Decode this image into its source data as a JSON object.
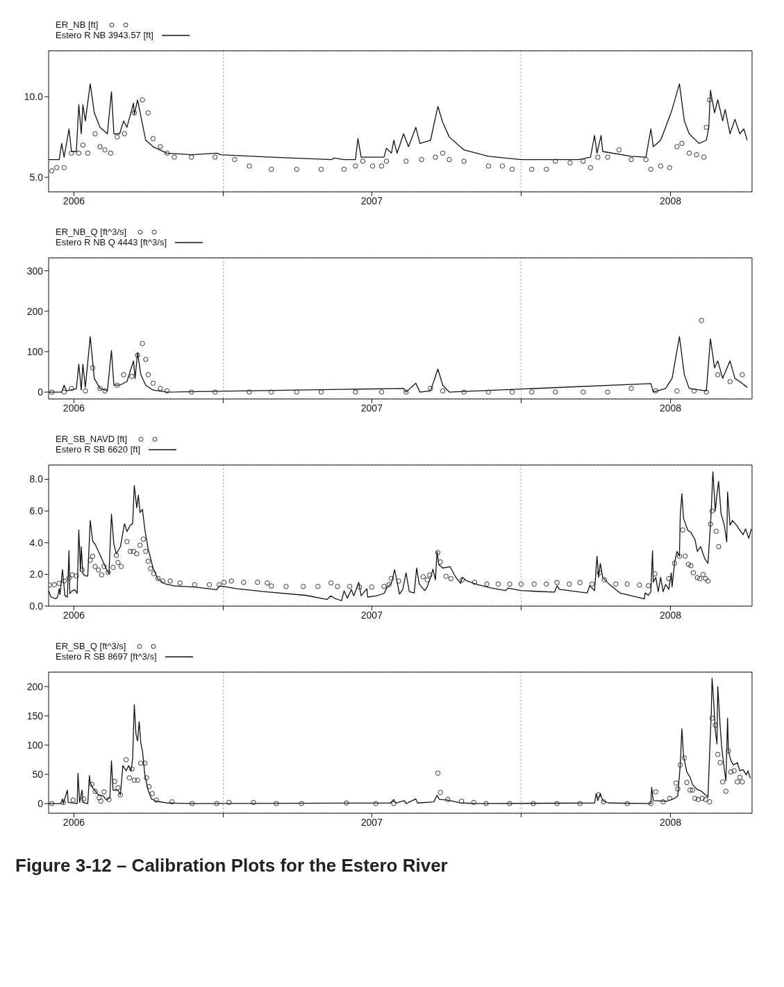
{
  "chart_data": [
    {
      "type": "line",
      "legend": "top left",
      "grid": true,
      "xlim": [
        "2006-06-01",
        "2008-10-10"
      ],
      "xticks": [
        {
          "value": "2006-07-02",
          "label": "2006"
        },
        {
          "value": "2007-01-01",
          "label": null
        },
        {
          "value": "2007-07-02",
          "label": "2007"
        },
        {
          "value": "2008-01-01",
          "label": null
        },
        {
          "value": "2008-07-02",
          "label": "2008"
        }
      ],
      "ylim": [
        4.1,
        12.85
      ],
      "yticks": [
        {
          "value": 5,
          "label": "5.0"
        },
        {
          "value": 10,
          "label": "10.0"
        }
      ],
      "series": [
        {
          "name": "ER_NB [ft]",
          "type": "scatter",
          "marker": "circle",
          "color": "#333333",
          "x": [
            "2006-06-05",
            "2006-06-11",
            "2006-06-20",
            "2006-06-29",
            "2006-07-08",
            "2006-07-13",
            "2006-07-19",
            "2006-07-28",
            "2006-08-03",
            "2006-08-09",
            "2006-08-16",
            "2006-08-24",
            "2006-09-02",
            "2006-09-14",
            "2006-09-24",
            "2006-10-01",
            "2006-10-07",
            "2006-10-16",
            "2006-10-24",
            "2006-11-02",
            "2006-11-23",
            "2006-12-22",
            "2007-01-15",
            "2007-02-02",
            "2007-03-01",
            "2007-04-01",
            "2007-05-01",
            "2007-05-29",
            "2007-06-12",
            "2007-06-21",
            "2007-07-03",
            "2007-07-14",
            "2007-07-20",
            "2007-08-13",
            "2007-09-01",
            "2007-09-18",
            "2007-09-27",
            "2007-10-05",
            "2007-10-23",
            "2007-11-22",
            "2007-12-09",
            "2007-12-21",
            "2008-01-14",
            "2008-02-01",
            "2008-02-12",
            "2008-03-01",
            "2008-03-17",
            "2008-03-26",
            "2008-04-04",
            "2008-04-16",
            "2008-04-30",
            "2008-05-15",
            "2008-06-02",
            "2008-06-08",
            "2008-06-20",
            "2008-07-01",
            "2008-07-10",
            "2008-07-16",
            "2008-07-25",
            "2008-08-03",
            "2008-08-12",
            "2008-08-15",
            "2008-08-19"
          ],
          "values": [
            5.4,
            5.6,
            5.6,
            6.5,
            6.5,
            7.0,
            6.5,
            7.7,
            6.9,
            6.7,
            6.5,
            7.5,
            7.7,
            9.0,
            9.8,
            9.0,
            7.4,
            6.9,
            6.5,
            6.25,
            6.25,
            6.25,
            6.1,
            5.7,
            5.5,
            5.5,
            5.5,
            5.5,
            5.7,
            6.0,
            5.7,
            5.7,
            6.0,
            6.0,
            6.1,
            6.25,
            6.5,
            6.1,
            6.0,
            5.7,
            5.7,
            5.5,
            5.5,
            5.5,
            6.0,
            5.9,
            6.0,
            5.6,
            6.25,
            6.25,
            6.7,
            6.1,
            6.1,
            5.5,
            5.7,
            5.6,
            6.9,
            7.1,
            6.5,
            6.4,
            6.25,
            8.1,
            9.8
          ]
        },
        {
          "name": "Estero R NB 3943.57 [ft]",
          "color": "#111111",
          "x": [
            "2006-06-01",
            "2006-06-14",
            "2006-06-17",
            "2006-06-20",
            "2006-06-26",
            "2006-06-29",
            "2006-07-05",
            "2006-07-08",
            "2006-07-11",
            "2006-07-13",
            "2006-07-16",
            "2006-07-22",
            "2006-07-27",
            "2006-08-03",
            "2006-08-12",
            "2006-08-17",
            "2006-08-20",
            "2006-08-27",
            "2006-09-01",
            "2006-09-05",
            "2006-09-13",
            "2006-09-14",
            "2006-09-18",
            "2006-09-22",
            "2006-09-28",
            "2006-10-07",
            "2006-10-24",
            "2006-11-23",
            "2006-12-24",
            "2006-12-29",
            "2007-03-01",
            "2007-05-14",
            "2007-05-17",
            "2007-05-29",
            "2007-06-12",
            "2007-06-15",
            "2007-06-19",
            "2007-07-14",
            "2007-07-17",
            "2007-07-20",
            "2007-07-26",
            "2007-07-29",
            "2007-08-02",
            "2007-08-10",
            "2007-08-16",
            "2007-08-25",
            "2007-08-30",
            "2007-09-12",
            "2007-09-21",
            "2007-09-27",
            "2007-10-05",
            "2007-10-23",
            "2007-11-22",
            "2008-01-01",
            "2008-03-12",
            "2008-03-26",
            "2008-03-31",
            "2008-04-03",
            "2008-04-08",
            "2008-04-10",
            "2008-05-15",
            "2008-06-02",
            "2008-06-08",
            "2008-06-11",
            "2008-06-20",
            "2008-06-26",
            "2008-07-04",
            "2008-07-13",
            "2008-07-19",
            "2008-07-25",
            "2008-08-06",
            "2008-08-15",
            "2008-08-18",
            "2008-08-20",
            "2008-08-25",
            "2008-08-29",
            "2008-09-04",
            "2008-09-07",
            "2008-09-13",
            "2008-09-19",
            "2008-09-25",
            "2008-09-30",
            "2008-10-04"
          ],
          "values": [
            6.1,
            6.1,
            7.1,
            6.25,
            8.0,
            6.6,
            6.6,
            9.5,
            7.7,
            9.5,
            8.5,
            10.8,
            9.0,
            8.1,
            7.7,
            10.3,
            7.7,
            7.7,
            8.5,
            8.1,
            9.6,
            8.9,
            9.8,
            8.8,
            7.3,
            6.9,
            6.5,
            6.4,
            6.5,
            6.4,
            6.25,
            6.1,
            6.2,
            6.1,
            6.1,
            7.4,
            6.25,
            6.25,
            6.25,
            6.8,
            6.5,
            7.3,
            6.5,
            7.7,
            6.9,
            8.1,
            7.1,
            7.3,
            9.4,
            8.4,
            7.5,
            6.7,
            6.3,
            6.1,
            6.1,
            6.25,
            7.6,
            6.5,
            7.6,
            6.6,
            6.3,
            6.25,
            8.0,
            6.9,
            7.3,
            8.1,
            9.2,
            10.8,
            8.5,
            7.7,
            7.1,
            7.3,
            8.1,
            10.4,
            9.0,
            9.8,
            8.5,
            9.2,
            7.7,
            8.6,
            7.7,
            8.0,
            7.3
          ]
        }
      ]
    },
    {
      "type": "line",
      "legend": "top left",
      "grid": true,
      "xlim": [
        "2006-06-01",
        "2008-10-10"
      ],
      "xticks": [
        {
          "value": "2006-07-02",
          "label": "2006"
        },
        {
          "value": "2007-01-01",
          "label": null
        },
        {
          "value": "2007-07-02",
          "label": "2007"
        },
        {
          "value": "2008-01-01",
          "label": null
        },
        {
          "value": "2008-07-02",
          "label": "2008"
        }
      ],
      "ylim": [
        -17,
        332
      ],
      "yticks": [
        0,
        100,
        200,
        300
      ],
      "series": [
        {
          "name": "ER_NB_Q [ft^3/s]",
          "type": "scatter",
          "marker": "circle",
          "color": "#333333",
          "x": [
            "2006-06-05",
            "2006-06-20",
            "2006-06-29",
            "2006-07-16",
            "2006-07-25",
            "2006-08-03",
            "2006-08-09",
            "2006-08-24",
            "2006-09-01",
            "2006-09-11",
            "2006-09-18",
            "2006-09-24",
            "2006-09-28",
            "2006-10-01",
            "2006-10-07",
            "2006-10-16",
            "2006-10-24",
            "2006-11-23",
            "2006-12-22",
            "2007-02-02",
            "2007-03-01",
            "2007-04-01",
            "2007-05-01",
            "2007-06-12",
            "2007-07-14",
            "2007-08-13",
            "2007-09-12",
            "2007-09-27",
            "2007-10-23",
            "2007-11-22",
            "2007-12-21",
            "2008-01-14",
            "2008-02-12",
            "2008-03-17",
            "2008-04-16",
            "2008-05-15",
            "2008-06-14",
            "2008-07-10",
            "2008-07-31",
            "2008-08-09",
            "2008-08-15",
            "2008-08-29",
            "2008-09-13",
            "2008-09-28"
          ],
          "values": [
            0,
            0,
            9,
            3,
            60,
            9,
            3,
            17,
            43,
            39,
            91,
            120,
            81,
            43,
            22,
            9,
            3,
            0,
            0,
            0,
            0,
            0,
            0,
            0,
            0,
            0,
            9,
            3,
            0,
            0,
            0,
            0,
            0,
            0,
            0,
            9,
            3,
            3,
            3,
            177,
            0,
            43,
            26,
            43
          ]
        },
        {
          "name": "Estero R NB Q 4443 [ft^3/s]",
          "color": "#111111",
          "x": [
            "2006-06-01",
            "2006-06-17",
            "2006-06-20",
            "2006-06-23",
            "2006-07-05",
            "2006-07-08",
            "2006-07-11",
            "2006-07-13",
            "2006-07-16",
            "2006-07-22",
            "2006-07-27",
            "2006-08-03",
            "2006-08-12",
            "2006-08-17",
            "2006-08-20",
            "2006-08-27",
            "2006-09-05",
            "2006-09-13",
            "2006-09-15",
            "2006-09-18",
            "2006-09-22",
            "2006-09-28",
            "2006-10-07",
            "2006-10-24",
            "2007-08-10",
            "2007-08-13",
            "2007-08-25",
            "2007-08-30",
            "2007-09-12",
            "2007-09-21",
            "2007-09-27",
            "2007-10-05",
            "2008-06-08",
            "2008-06-11",
            "2008-06-26",
            "2008-07-04",
            "2008-07-13",
            "2008-07-19",
            "2008-07-25",
            "2008-08-15",
            "2008-08-20",
            "2008-08-25",
            "2008-08-29",
            "2008-09-04",
            "2008-09-13",
            "2008-09-19",
            "2008-09-25",
            "2008-10-04"
          ],
          "values": [
            0,
            0,
            17,
            3,
            8,
            69,
            5,
            69,
            12,
            137,
            34,
            9,
            3,
            103,
            17,
            17,
            26,
            77,
            34,
            98,
            43,
            17,
            5,
            0,
            9,
            0,
            22,
            0,
            3,
            57,
            17,
            0,
            21,
            0,
            9,
            34,
            137,
            43,
            9,
            3,
            132,
            60,
            77,
            34,
            77,
            34,
            26,
            12
          ]
        }
      ]
    },
    {
      "type": "line",
      "legend": "top left",
      "grid": true,
      "xlim": [
        "2006-06-01",
        "2008-10-10"
      ],
      "xticks": [
        {
          "value": "2006-07-02",
          "label": "2006"
        },
        {
          "value": "2007-01-01",
          "label": null
        },
        {
          "value": "2007-07-02",
          "label": "2007"
        },
        {
          "value": "2008-01-01",
          "label": null
        },
        {
          "value": "2008-07-02",
          "label": "2008"
        }
      ],
      "ylim": [
        0,
        8.9
      ],
      "yticks": [
        {
          "value": 0,
          "label": "0.0"
        },
        {
          "value": 2,
          "label": "2.0"
        },
        {
          "value": 4,
          "label": "4.0"
        },
        {
          "value": 6,
          "label": "6.0"
        },
        {
          "value": 8,
          "label": "8.0"
        }
      ],
      "series": [
        {
          "name": "ER_SB_NAVD [ft]",
          "type": "scatter",
          "marker": "circle",
          "color": "#333333",
          "x": [
            "2006-06-02",
            "2006-06-08",
            "2006-06-14",
            "2006-06-20",
            "2006-06-26",
            "2006-06-30",
            "2006-07-05",
            "2006-07-12",
            "2006-07-22",
            "2006-07-25",
            "2006-07-28",
            "2006-08-01",
            "2006-08-05",
            "2006-08-08",
            "2006-08-13",
            "2006-08-19",
            "2006-08-23",
            "2006-08-25",
            "2006-08-29",
            "2006-09-05",
            "2006-09-09",
            "2006-09-13",
            "2006-09-17",
            "2006-09-21",
            "2006-09-25",
            "2006-09-28",
            "2006-10-01",
            "2006-10-04",
            "2006-10-08",
            "2006-10-13",
            "2006-10-19",
            "2006-10-28",
            "2006-11-09",
            "2006-11-27",
            "2006-12-15",
            "2006-12-27",
            "2007-01-02",
            "2007-01-11",
            "2007-01-26",
            "2007-02-12",
            "2007-02-24",
            "2007-03-01",
            "2007-03-19",
            "2007-04-09",
            "2007-04-27",
            "2007-05-13",
            "2007-05-21",
            "2007-06-05",
            "2007-06-17",
            "2007-07-02",
            "2007-07-17",
            "2007-07-23",
            "2007-07-26",
            "2007-08-04",
            "2007-09-03",
            "2007-09-08",
            "2007-09-11",
            "2007-09-21",
            "2007-09-24",
            "2007-10-01",
            "2007-10-07",
            "2007-10-21",
            "2007-11-05",
            "2007-11-20",
            "2007-12-04",
            "2007-12-18",
            "2008-01-01",
            "2008-01-17",
            "2008-02-01",
            "2008-02-14",
            "2008-02-29",
            "2008-03-13",
            "2008-03-28",
            "2008-04-06",
            "2008-04-12",
            "2008-04-26",
            "2008-05-10",
            "2008-05-25",
            "2008-06-05",
            "2008-06-13",
            "2008-06-30",
            "2008-07-07",
            "2008-07-13",
            "2008-07-17",
            "2008-07-20",
            "2008-07-24",
            "2008-07-27",
            "2008-07-30",
            "2008-08-04",
            "2008-08-07",
            "2008-08-11",
            "2008-08-14",
            "2008-08-17",
            "2008-08-20",
            "2008-08-22",
            "2008-08-27",
            "2008-08-30"
          ],
          "values": [
            1.32,
            1.35,
            1.43,
            1.58,
            1.77,
            1.97,
            1.9,
            2.28,
            2.9,
            3.14,
            2.5,
            2.28,
            1.97,
            2.5,
            2.13,
            2.44,
            3.2,
            2.75,
            2.5,
            4.07,
            3.45,
            3.45,
            3.3,
            3.84,
            4.22,
            3.45,
            2.83,
            2.36,
            2.05,
            1.74,
            1.58,
            1.58,
            1.46,
            1.35,
            1.35,
            1.35,
            1.5,
            1.58,
            1.5,
            1.5,
            1.46,
            1.27,
            1.24,
            1.24,
            1.24,
            1.46,
            1.24,
            1.24,
            1.2,
            1.2,
            1.24,
            1.35,
            1.74,
            1.58,
            1.85,
            1.66,
            1.96,
            3.38,
            2.78,
            1.88,
            1.73,
            1.66,
            1.5,
            1.39,
            1.39,
            1.39,
            1.39,
            1.39,
            1.39,
            1.48,
            1.39,
            1.48,
            1.39,
            2.1,
            1.66,
            1.39,
            1.39,
            1.33,
            1.28,
            2.03,
            1.73,
            2.7,
            3.15,
            4.8,
            3.15,
            2.63,
            2.55,
            2.1,
            1.8,
            1.73,
            2.0,
            1.73,
            1.58,
            5.17,
            6.0,
            4.72,
            3.75
          ]
        },
        {
          "name": "Estero R SB 6620 [ft]",
          "color": "#111111",
          "x": [
            "2006-06-01",
            "2006-06-04",
            "2006-06-10",
            "2006-06-12",
            "2006-06-14",
            "2006-06-15",
            "2006-06-18",
            "2006-06-21",
            "2006-06-24",
            "2006-06-26",
            "2006-06-27",
            "2006-06-30",
            "2006-07-03",
            "2006-07-06",
            "2006-07-08",
            "2006-07-10",
            "2006-07-11",
            "2006-07-13",
            "2006-07-16",
            "2006-07-19",
            "2006-07-22",
            "2006-07-25",
            "2006-07-28",
            "2006-08-05",
            "2006-08-11",
            "2006-08-14",
            "2006-08-17",
            "2006-08-20",
            "2006-08-23",
            "2006-08-28",
            "2006-09-02",
            "2006-09-05",
            "2006-09-09",
            "2006-09-12",
            "2006-09-14",
            "2006-09-17",
            "2006-09-19",
            "2006-09-21",
            "2006-09-24",
            "2006-09-27",
            "2006-10-01",
            "2006-10-07",
            "2006-10-13",
            "2006-10-22",
            "2006-11-03",
            "2006-11-27",
            "2006-12-24",
            "2006-12-27",
            "2007-01-01",
            "2007-01-17",
            "2007-02-24",
            "2007-04-12",
            "2007-05-08",
            "2007-05-13",
            "2007-05-17",
            "2007-05-26",
            "2007-05-29",
            "2007-06-02",
            "2007-06-07",
            "2007-06-10",
            "2007-06-16",
            "2007-06-19",
            "2007-06-26",
            "2007-06-27",
            "2007-07-08",
            "2007-07-17",
            "2007-07-21",
            "2007-07-26",
            "2007-07-30",
            "2007-08-05",
            "2007-08-09",
            "2007-08-13",
            "2007-08-17",
            "2007-08-23",
            "2007-08-26",
            "2007-08-29",
            "2007-09-01",
            "2007-09-05",
            "2007-09-08",
            "2007-09-12",
            "2007-09-15",
            "2007-09-18",
            "2007-09-20",
            "2007-09-22",
            "2007-09-27",
            "2007-10-06",
            "2007-10-13",
            "2007-10-19",
            "2007-10-21",
            "2007-10-27",
            "2007-11-08",
            "2007-11-26",
            "2007-12-13",
            "2007-12-16",
            "2008-01-01",
            "2008-01-28",
            "2008-02-11",
            "2008-02-14",
            "2008-02-17",
            "2008-03-22",
            "2008-03-25",
            "2008-03-31",
            "2008-04-03",
            "2008-04-05",
            "2008-04-07",
            "2008-04-10",
            "2008-04-17",
            "2008-05-01",
            "2008-05-31",
            "2008-06-01",
            "2008-06-05",
            "2008-06-08",
            "2008-06-10",
            "2008-06-11",
            "2008-06-14",
            "2008-06-17",
            "2008-06-20",
            "2008-06-23",
            "2008-06-26",
            "2008-06-30",
            "2008-07-03",
            "2008-07-04",
            "2008-07-07",
            "2008-07-10",
            "2008-07-13",
            "2008-07-14",
            "2008-07-16",
            "2008-07-18",
            "2008-07-23",
            "2008-07-27",
            "2008-08-01",
            "2008-08-04",
            "2008-08-08",
            "2008-08-13",
            "2008-08-17",
            "2008-08-20",
            "2008-08-21",
            "2008-08-23",
            "2008-08-26",
            "2008-08-28",
            "2008-08-30",
            "2008-09-02",
            "2008-09-06",
            "2008-09-09",
            "2008-09-10",
            "2008-09-13",
            "2008-09-16",
            "2008-09-21",
            "2008-09-25",
            "2008-09-29",
            "2008-10-02",
            "2008-10-06",
            "2008-10-09"
          ],
          "values": [
            0.96,
            0.57,
            0.47,
            0.57,
            1.1,
            0.73,
            2.3,
            0.65,
            0.57,
            3.5,
            0.8,
            0.96,
            1.04,
            0.8,
            4.8,
            2.2,
            3.75,
            2.05,
            1.9,
            1.9,
            5.4,
            4.1,
            3.9,
            3.0,
            2.3,
            2.05,
            5.8,
            3.9,
            3.3,
            3.75,
            5.2,
            4.7,
            5.1,
            5.2,
            7.6,
            6.2,
            7.0,
            5.9,
            6.1,
            4.8,
            3.6,
            2.4,
            1.7,
            1.4,
            1.27,
            1.2,
            1.04,
            1.27,
            1.24,
            1.1,
            0.89,
            0.68,
            0.42,
            0.65,
            0.5,
            0.34,
            0.96,
            0.5,
            1.04,
            0.65,
            1.5,
            0.65,
            1.1,
            0.57,
            0.65,
            0.8,
            1.2,
            1.43,
            2.3,
            0.76,
            1.06,
            2.1,
            0.91,
            0.83,
            2.4,
            1.43,
            1.21,
            0.98,
            1.21,
            1.81,
            2.33,
            1.66,
            3.45,
            2.63,
            2.4,
            2.48,
            1.81,
            1.43,
            1.81,
            1.58,
            1.36,
            1.13,
            0.98,
            1.13,
            0.98,
            0.91,
            0.88,
            1.28,
            1.06,
            0.83,
            1.28,
            0.98,
            3.15,
            1.81,
            2.7,
            1.81,
            1.43,
            0.83,
            0.46,
            0.83,
            0.68,
            0.91,
            3.5,
            1.51,
            1.81,
            0.91,
            1.81,
            0.91,
            1.36,
            1.06,
            2.1,
            1.21,
            2.7,
            3.45,
            3.15,
            5.7,
            7.1,
            5.55,
            4.8,
            4.65,
            4.2,
            3.45,
            3.75,
            3.0,
            2.7,
            5.1,
            6.0,
            8.47,
            6.0,
            7.05,
            7.87,
            5.85,
            5.1,
            4.05,
            7.2,
            5.1,
            5.4,
            5.1,
            4.8,
            4.5,
            4.87,
            4.27,
            4.87
          ]
        }
      ]
    },
    {
      "type": "line",
      "legend": "top left",
      "grid": true,
      "xlim": [
        "2006-06-01",
        "2008-10-10"
      ],
      "xticks": [
        {
          "value": "2006-07-02",
          "label": "2006"
        },
        {
          "value": "2007-01-01",
          "label": null
        },
        {
          "value": "2007-07-02",
          "label": "2007"
        },
        {
          "value": "2008-01-01",
          "label": null
        },
        {
          "value": "2008-07-02",
          "label": "2008"
        }
      ],
      "ylim": [
        -16.5,
        224.7
      ],
      "yticks": [
        0,
        50,
        100,
        150,
        200
      ],
      "annotations": [
        "Figure 3-12 – Calibration Plots for the Estero River"
      ],
      "series": [
        {
          "name": "ER_SB_Q [ft^3/s]",
          "type": "scatter",
          "marker": "circle",
          "color": "#333333",
          "x": [
            "2006-06-05",
            "2006-06-19",
            "2006-07-01",
            "2006-07-14",
            "2006-07-24",
            "2006-07-28",
            "2006-08-02",
            "2006-08-04",
            "2006-08-08",
            "2006-08-14",
            "2006-08-21",
            "2006-08-25",
            "2006-08-28",
            "2006-09-04",
            "2006-09-08",
            "2006-09-11",
            "2006-09-14",
            "2006-09-18",
            "2006-09-22",
            "2006-09-27",
            "2006-09-29",
            "2006-10-02",
            "2006-10-06",
            "2006-10-11",
            "2006-10-30",
            "2006-11-24",
            "2006-12-24",
            "2007-01-08",
            "2007-02-07",
            "2007-03-07",
            "2007-04-07",
            "2007-06-01",
            "2007-07-07",
            "2007-07-29",
            "2007-09-21",
            "2007-09-24",
            "2007-10-03",
            "2007-10-20",
            "2007-11-04",
            "2007-11-19",
            "2007-12-18",
            "2008-01-16",
            "2008-02-14",
            "2008-03-13",
            "2008-04-05",
            "2008-04-11",
            "2008-05-10",
            "2008-06-08",
            "2008-06-14",
            "2008-06-23",
            "2008-07-01",
            "2008-07-09",
            "2008-07-11",
            "2008-07-14",
            "2008-07-19",
            "2008-07-22",
            "2008-07-26",
            "2008-07-29",
            "2008-08-01",
            "2008-08-05",
            "2008-08-10",
            "2008-08-14",
            "2008-08-19",
            "2008-08-22",
            "2008-08-26",
            "2008-08-29",
            "2008-09-01",
            "2008-09-04",
            "2008-09-08",
            "2008-09-11",
            "2008-09-14",
            "2008-09-18",
            "2008-09-22",
            "2008-09-25",
            "2008-09-28"
          ],
          "values": [
            0,
            2,
            6,
            8,
            33,
            21,
            10,
            4,
            20,
            7,
            38,
            27,
            15,
            75,
            44,
            59,
            40,
            40,
            69,
            69,
            44,
            29,
            17,
            6,
            3,
            0,
            0,
            2,
            2,
            0,
            0,
            1,
            0,
            0,
            52,
            19,
            7,
            4,
            2,
            0,
            0,
            0,
            0,
            0,
            15,
            3,
            0,
            0,
            20,
            3,
            9,
            35,
            25,
            66,
            78,
            36,
            23,
            23,
            9,
            7,
            9,
            7,
            3,
            146,
            134,
            84,
            70,
            37,
            21,
            90,
            54,
            56,
            37,
            45,
            37
          ]
        },
        {
          "name": "Estero R SB 8697 [ft^3/s]",
          "color": "#111111",
          "x": [
            "2006-06-01",
            "2006-06-16",
            "2006-06-18",
            "2006-06-19",
            "2006-06-24",
            "2006-06-25",
            "2006-07-06",
            "2006-07-07",
            "2006-07-09",
            "2006-07-12",
            "2006-07-13",
            "2006-07-19",
            "2006-07-21",
            "2006-07-22",
            "2006-07-25",
            "2006-08-01",
            "2006-08-07",
            "2006-08-11",
            "2006-08-15",
            "2006-08-17",
            "2006-08-19",
            "2006-08-25",
            "2006-08-28",
            "2006-08-31",
            "2006-09-04",
            "2006-09-07",
            "2006-09-10",
            "2006-09-12",
            "2006-09-14",
            "2006-09-16",
            "2006-09-18",
            "2006-09-20",
            "2006-09-22",
            "2006-09-24",
            "2006-09-27",
            "2006-10-01",
            "2006-10-05",
            "2006-10-11",
            "2006-10-25",
            "2006-11-24",
            "2007-07-25",
            "2007-07-29",
            "2007-07-31",
            "2007-08-11",
            "2007-08-13",
            "2007-08-25",
            "2007-08-27",
            "2007-09-16",
            "2007-09-20",
            "2007-09-23",
            "2007-10-03",
            "2007-10-20",
            "2007-11-11",
            "2008-03-31",
            "2008-04-02",
            "2008-04-04",
            "2008-04-07",
            "2008-04-10",
            "2008-04-17",
            "2008-06-08",
            "2008-06-09",
            "2008-06-11",
            "2008-06-28",
            "2008-07-07",
            "2008-07-11",
            "2008-07-14",
            "2008-07-16",
            "2008-07-18",
            "2008-07-22",
            "2008-07-26",
            "2008-07-29",
            "2008-08-03",
            "2008-08-09",
            "2008-08-17",
            "2008-08-19",
            "2008-08-21",
            "2008-08-22",
            "2008-08-24",
            "2008-08-26",
            "2008-08-28",
            "2008-08-29",
            "2008-09-01",
            "2008-09-03",
            "2008-09-06",
            "2008-09-08",
            "2008-09-10",
            "2008-09-11",
            "2008-09-14",
            "2008-09-17",
            "2008-09-22",
            "2008-09-25",
            "2008-09-29",
            "2008-10-03",
            "2008-10-05",
            "2008-10-08"
          ],
          "values": [
            0,
            0,
            8,
            0,
            23,
            2,
            0,
            52,
            2,
            23,
            2,
            0,
            48,
            36,
            27,
            15,
            13,
            6,
            10,
            73,
            23,
            23,
            15,
            65,
            56,
            65,
            56,
            77,
            169,
            119,
            107,
            140,
            103,
            90,
            48,
            23,
            8,
            4,
            1,
            0,
            1,
            7,
            1,
            5,
            0,
            8,
            1,
            3,
            14,
            7,
            6,
            1,
            0,
            1,
            17,
            5,
            17,
            5,
            1,
            0,
            28,
            5,
            4,
            9,
            13,
            66,
            128,
            82,
            54,
            45,
            33,
            25,
            21,
            11,
            86,
            154,
            214,
            174,
            124,
            102,
            200,
            130,
            94,
            58,
            39,
            146,
            90,
            74,
            66,
            70,
            56,
            58,
            49,
            56,
            43
          ]
        }
      ]
    }
  ]
}
